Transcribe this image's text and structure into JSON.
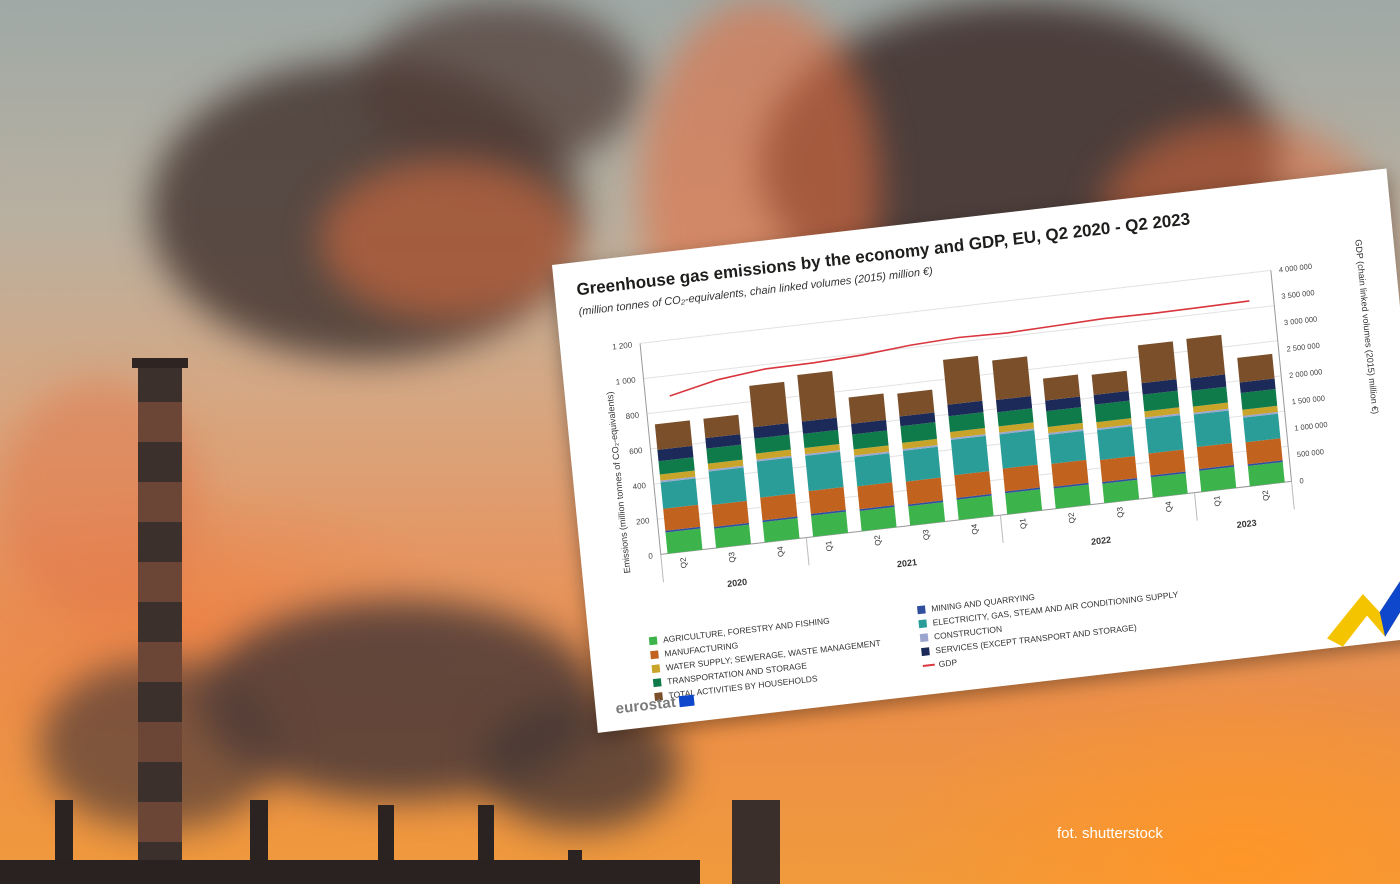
{
  "photo_credit": "fot. shutterstock",
  "brand": {
    "name": "eurostat"
  },
  "chart_data": {
    "type": "bar",
    "stacked": true,
    "title": "Greenhouse gas emissions by the economy and GDP, EU, Q2 2020 - Q2 2023",
    "subtitle": "(million tonnes of CO₂-equivalents, chain linked volumes (2015) million €)",
    "ylabel": "Emissions (million tonnes of CO₂-equivalents)",
    "y2label": "GDP (chain linked volumes (2015) million €)",
    "ylim": [
      0,
      1200
    ],
    "y2lim": [
      0,
      4000000
    ],
    "yticks": [
      0,
      200,
      400,
      600,
      800,
      1000,
      1200
    ],
    "ytick_labels": [
      "0",
      "200",
      "400",
      "600",
      "800",
      "1 000",
      "1 200"
    ],
    "y2ticks": [
      0,
      500000,
      1000000,
      1500000,
      2000000,
      2500000,
      3000000,
      3500000,
      4000000
    ],
    "y2tick_labels": [
      "0",
      "500 000",
      "1 000 000",
      "1 500 000",
      "2 000 000",
      "2 500 000",
      "3 000 000",
      "3 500 000",
      "4 000 000"
    ],
    "categories": [
      "Q2",
      "Q3",
      "Q4",
      "Q1",
      "Q2",
      "Q3",
      "Q4",
      "Q1",
      "Q2",
      "Q3",
      "Q4",
      "Q1",
      "Q2"
    ],
    "year_groups": [
      {
        "label": "2020",
        "start": 0,
        "end": 2
      },
      {
        "label": "2021",
        "start": 3,
        "end": 6
      },
      {
        "label": "2022",
        "start": 7,
        "end": 10
      },
      {
        "label": "2023",
        "start": 11,
        "end": 12
      }
    ],
    "series": [
      {
        "name": "AGRICULTURE, FORESTRY AND FISHING",
        "color": "#3cb44b",
        "values": [
          120,
          110,
          115,
          120,
          115,
          110,
          115,
          120,
          115,
          110,
          115,
          120,
          115
        ]
      },
      {
        "name": "MINING AND QUARRYING",
        "color": "#2f4f9e",
        "values": [
          10,
          10,
          10,
          10,
          10,
          10,
          10,
          10,
          10,
          10,
          10,
          10,
          10
        ]
      },
      {
        "name": "MANUFACTURING",
        "color": "#c2621f",
        "values": [
          125,
          125,
          130,
          130,
          130,
          130,
          130,
          130,
          130,
          125,
          125,
          125,
          125
        ]
      },
      {
        "name": "ELECTRICITY, GAS, STEAM AND AIR CONDITIONING SUPPLY",
        "color": "#2a9d99",
        "values": [
          150,
          190,
          205,
          200,
          165,
          175,
          200,
          195,
          165,
          170,
          195,
          185,
          140
        ]
      },
      {
        "name": "CONSTRUCTION",
        "color": "#9aa6cf",
        "values": [
          10,
          10,
          10,
          10,
          10,
          10,
          10,
          10,
          10,
          10,
          10,
          10,
          10
        ]
      },
      {
        "name": "WATER SUPPLY; SEWERAGE, WASTE MANAGEMENT",
        "color": "#c8a42a",
        "values": [
          35,
          35,
          35,
          35,
          35,
          35,
          35,
          35,
          35,
          35,
          35,
          35,
          35
        ]
      },
      {
        "name": "TRANSPORTATION AND STORAGE",
        "color": "#0f7a4a",
        "values": [
          75,
          85,
          85,
          80,
          85,
          95,
          90,
          80,
          90,
          100,
          95,
          90,
          95
        ]
      },
      {
        "name": "SERVICES (EXCEPT TRANSPORT AND STORAGE)",
        "color": "#1c2a5a",
        "values": [
          65,
          60,
          65,
          70,
          60,
          55,
          65,
          70,
          60,
          55,
          65,
          70,
          60
        ]
      },
      {
        "name": "TOTAL ACTIVITIES BY HOUSEHOLDS",
        "color": "#7a4f2a",
        "values": [
          145,
          110,
          235,
          265,
          150,
          130,
          255,
          225,
          125,
          115,
          215,
          225,
          140
        ]
      }
    ],
    "line_series": {
      "name": "GDP",
      "color": "#d9363e",
      "axis": "right",
      "values": [
        2950000,
        3150000,
        3250000,
        3260000,
        3300000,
        3380000,
        3420000,
        3400000,
        3430000,
        3460000,
        3450000,
        3460000,
        3475000
      ]
    },
    "grid": true,
    "legend_position": "bottom"
  }
}
